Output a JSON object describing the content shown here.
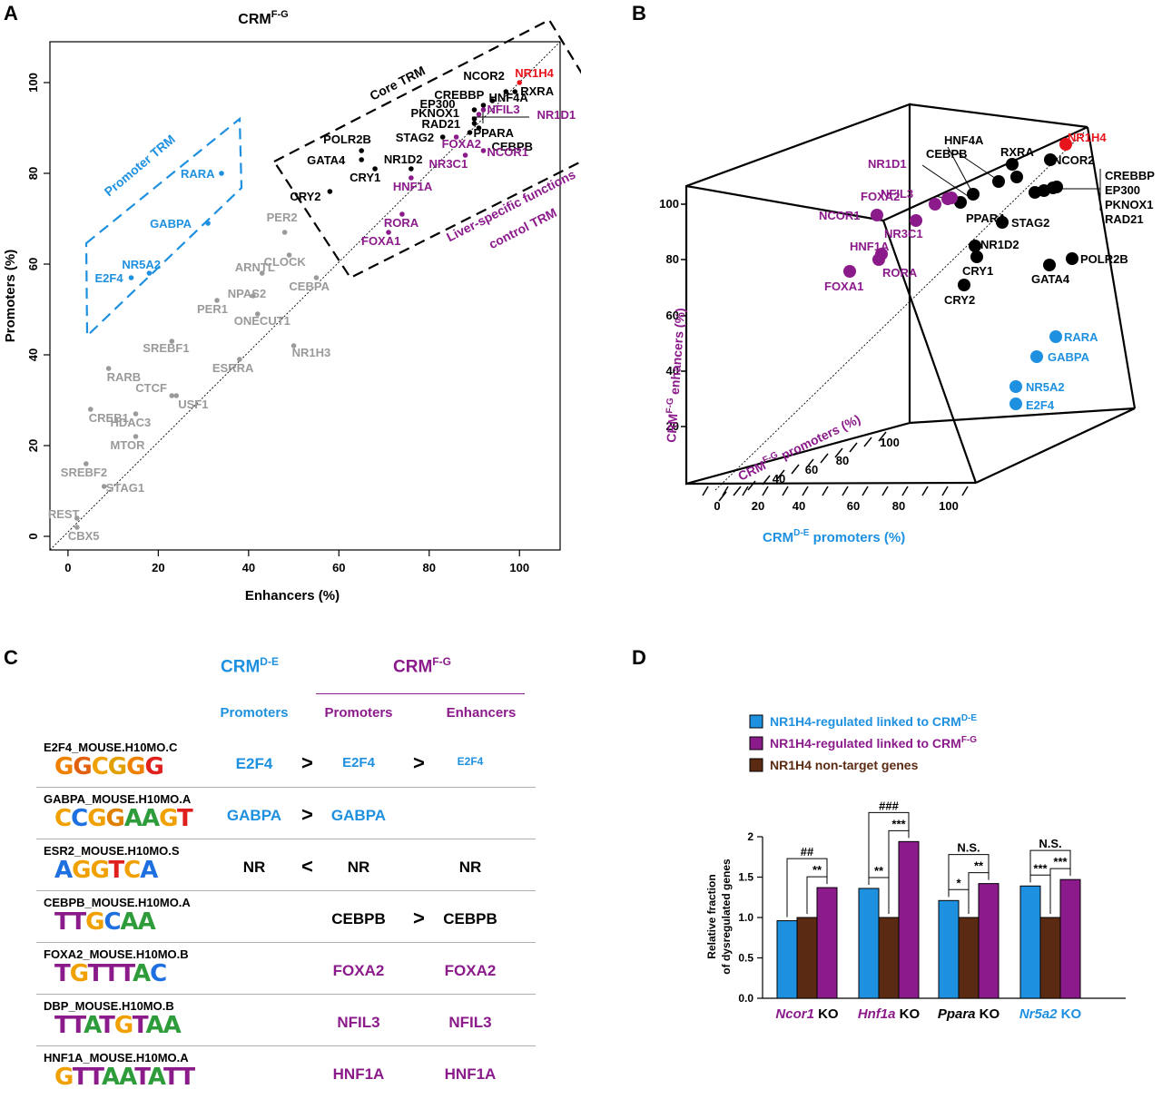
{
  "panels": {
    "A": "A",
    "B": "B",
    "C": "C",
    "D": "D"
  },
  "panelA": {
    "title_main": "CRM",
    "title_sup": "F-G",
    "xlabel": "Enhancers (%)",
    "ylabel": "Promoters (%)",
    "xticks": [
      "0",
      "20",
      "40",
      "60",
      "80",
      "100"
    ],
    "yticks": [
      "0",
      "20",
      "40",
      "60",
      "80",
      "100"
    ],
    "region_core": "Core TRM",
    "region_promoter": "Promoter TRM",
    "region_liver_1": "Liver-specific functions",
    "region_liver_2": "control TRM",
    "colors": {
      "black": "#000000",
      "gray": "#9a9a9a",
      "blue": "#1e90e0",
      "purple": "#8b1a8b",
      "red": "#e8141c"
    }
  },
  "chart_data": {
    "type": "scatter",
    "xlabel": "Enhancers (%)",
    "ylabel": "Promoters (%)",
    "xlim": [
      -4,
      109
    ],
    "ylim": [
      -3,
      109
    ],
    "series": [
      {
        "group": "gray",
        "points": [
          {
            "label": "PER2",
            "x": 48,
            "y": 67
          },
          {
            "label": "CLOCK",
            "x": 49,
            "y": 62
          },
          {
            "label": "CEBPA",
            "x": 55,
            "y": 57
          },
          {
            "label": "ARNTL",
            "x": 43,
            "y": 58
          },
          {
            "label": "NPAS2",
            "x": 41,
            "y": 53
          },
          {
            "label": "PER1",
            "x": 33,
            "y": 52
          },
          {
            "label": "ONECUT1",
            "x": 42,
            "y": 49
          },
          {
            "label": "SREBF1",
            "x": 23,
            "y": 43
          },
          {
            "label": "NR1H3",
            "x": 50,
            "y": 42
          },
          {
            "label": "ESRRA",
            "x": 38,
            "y": 39
          },
          {
            "label": "RARB",
            "x": 9,
            "y": 37
          },
          {
            "label": "CTCF",
            "x": 23,
            "y": 31
          },
          {
            "label": "USF1",
            "x": 24,
            "y": 31
          },
          {
            "label": "CREB1",
            "x": 5,
            "y": 28
          },
          {
            "label": "HDAC3",
            "x": 15,
            "y": 27
          },
          {
            "label": "MTOR",
            "x": 15,
            "y": 22
          },
          {
            "label": "SREBF2",
            "x": 4,
            "y": 16
          },
          {
            "label": "STAG1",
            "x": 8,
            "y": 11
          },
          {
            "label": "REST",
            "x": 2,
            "y": 4
          },
          {
            "label": "CBX5",
            "x": 2,
            "y": 2
          }
        ]
      },
      {
        "group": "blue",
        "points": [
          {
            "label": "RARA",
            "x": 34,
            "y": 80
          },
          {
            "label": "GABPA",
            "x": 31,
            "y": 69
          },
          {
            "label": "NR5A2",
            "x": 18,
            "y": 58
          },
          {
            "label": "E2F4",
            "x": 14,
            "y": 57
          }
        ]
      },
      {
        "group": "black",
        "points": [
          {
            "label": "NCOR2",
            "x": 97,
            "y": 98
          },
          {
            "label": "RXRA",
            "x": 99,
            "y": 98
          },
          {
            "label": "CREBBP",
            "x": 94,
            "y": 96
          },
          {
            "label": "HNF4A",
            "x": 92,
            "y": 95
          },
          {
            "label": "EP300",
            "x": 90,
            "y": 94
          },
          {
            "label": "PKNOX1",
            "x": 90,
            "y": 92
          },
          {
            "label": "RAD21",
            "x": 90,
            "y": 91
          },
          {
            "label": "CEBPB",
            "x": 91,
            "y": 90
          },
          {
            "label": "STAG2",
            "x": 83,
            "y": 88
          },
          {
            "label": "PPARA",
            "x": 89,
            "y": 89
          },
          {
            "label": "POLR2B",
            "x": 65,
            "y": 85
          },
          {
            "label": "GATA4",
            "x": 65,
            "y": 83
          },
          {
            "label": "CRY1",
            "x": 68,
            "y": 81
          },
          {
            "label": "NR1D2",
            "x": 76,
            "y": 81
          },
          {
            "label": "CRY2",
            "x": 58,
            "y": 76
          }
        ]
      },
      {
        "group": "purple",
        "points": [
          {
            "label": "NFIL3",
            "x": 92,
            "y": 94
          },
          {
            "label": "NR1D1",
            "x": 91,
            "y": 93
          },
          {
            "label": "FOXA2",
            "x": 86,
            "y": 88
          },
          {
            "label": "NCOR1",
            "x": 92,
            "y": 85
          },
          {
            "label": "NR3C1",
            "x": 88,
            "y": 84
          },
          {
            "label": "HNF1A",
            "x": 76,
            "y": 79
          },
          {
            "label": "RORA",
            "x": 74,
            "y": 71
          },
          {
            "label": "FOXA1",
            "x": 71,
            "y": 67
          }
        ]
      },
      {
        "group": "red",
        "points": [
          {
            "label": "NR1H4",
            "x": 100,
            "y": 100
          }
        ]
      }
    ]
  },
  "panelB": {
    "zlabel_main": "CRM",
    "zlabel_sup": "F-G",
    "zlabel_rest": " enhancers (%)",
    "ylabel_main": "CRM",
    "ylabel_sup": "F-G",
    "ylabel_rest": " promoters (%)",
    "xlabel_main": "CRM",
    "xlabel_sup": "D-E",
    "xlabel_rest": " promoters (%)",
    "zticks": [
      "20",
      "40",
      "60",
      "80",
      "100"
    ],
    "yticks": [
      "40",
      "60",
      "80",
      "100"
    ],
    "xticks": [
      "0",
      "20",
      "40",
      "60",
      "80",
      "100"
    ],
    "bracket_labels": [
      "CREBBP",
      "EP300",
      "PKNOX1",
      "RAD21"
    ],
    "points": [
      {
        "label": "NR1H4",
        "group": "red"
      },
      {
        "label": "NCOR2",
        "group": "black"
      },
      {
        "label": "RXRA",
        "group": "black"
      },
      {
        "label": "HNF4A",
        "group": "black"
      },
      {
        "label": "CEBPB",
        "group": "black"
      },
      {
        "label": "PPARA",
        "group": "black"
      },
      {
        "label": "STAG2",
        "group": "black"
      },
      {
        "label": "NR1D2",
        "group": "black"
      },
      {
        "label": "CRY1",
        "group": "black"
      },
      {
        "label": "CRY2",
        "group": "black"
      },
      {
        "label": "GATA4",
        "group": "black"
      },
      {
        "label": "POLR2B",
        "group": "black"
      },
      {
        "label": "NR1D1",
        "group": "purple"
      },
      {
        "label": "FOXA2",
        "group": "purple"
      },
      {
        "label": "NFIL3",
        "group": "purple"
      },
      {
        "label": "NCOR1",
        "group": "purple"
      },
      {
        "label": "NR3C1",
        "group": "purple"
      },
      {
        "label": "HNF1A",
        "group": "purple"
      },
      {
        "label": "RORA",
        "group": "purple"
      },
      {
        "label": "FOXA1",
        "group": "purple"
      },
      {
        "label": "RARA",
        "group": "blue"
      },
      {
        "label": "GABPA",
        "group": "blue"
      },
      {
        "label": "NR5A2",
        "group": "blue"
      },
      {
        "label": "E2F4",
        "group": "blue"
      }
    ]
  },
  "panelC": {
    "head_de_main": "CRM",
    "head_de_sup": "D-E",
    "head_fg_main": "CRM",
    "head_fg_sup": "F-G",
    "col_promoters_de": "Promoters",
    "col_promoters_fg": "Promoters",
    "col_enhancers_fg": "Enhancers",
    "rows": [
      {
        "motif": "E2F4_MOUSE.H10MO.C",
        "logo": "GGCGGG",
        "de": "E2F4",
        "op1": ">",
        "fgp": "E2F4",
        "op2": ">",
        "fge": "E2F4"
      },
      {
        "motif": "GABPA_MOUSE.H10MO.A",
        "logo": "CCGGAAGT",
        "de": "GABPA",
        "op1": ">",
        "fgp": "GABPA",
        "op2": "",
        "fge": ""
      },
      {
        "motif": "ESR2_MOUSE.H10MO.S",
        "logo": "AGGTCA",
        "de": "NR",
        "op1": "<",
        "fgp": "NR",
        "op2": "",
        "fge": "NR"
      },
      {
        "motif": "CEBPB_MOUSE.H10MO.A",
        "logo": "TTGCAA",
        "de": "",
        "op1": "",
        "fgp": "CEBPB",
        "op2": ">",
        "fge": "CEBPB"
      },
      {
        "motif": "FOXA2_MOUSE.H10MO.B",
        "logo": "TGTTTAC",
        "de": "",
        "op1": "",
        "fgp": "FOXA2",
        "op2": "",
        "fge": "FOXA2"
      },
      {
        "motif": "DBP_MOUSE.H10MO.B",
        "logo": "TTATGTAA",
        "de": "",
        "op1": "",
        "fgp": "NFIL3",
        "op2": "",
        "fge": "NFIL3"
      },
      {
        "motif": "HNF1A_MOUSE.H10MO.A",
        "logo": "GTTAATATT",
        "de": "",
        "op1": "",
        "fgp": "HNF1A",
        "op2": "",
        "fge": "HNF1A"
      }
    ]
  },
  "panelD": {
    "legend": [
      {
        "label": "NR1H4-regulated linked to CRM",
        "sup": "D-E",
        "color": "#1e90e0"
      },
      {
        "label": "NR1H4-regulated linked to CRM",
        "sup": "F-G",
        "color": "#8b1a8b"
      },
      {
        "label": "NR1H4 non-target genes",
        "sup": "",
        "color": "#5a2a12"
      }
    ],
    "ylabel_1": "Relative fraction",
    "ylabel_2": "of dysregulated genes",
    "yticks": [
      "0.0",
      "0.5",
      "1.0",
      "1.5",
      "2"
    ],
    "groups": [
      {
        "gene": "Ncor1",
        "suffix": " KO",
        "gene_color": "#8b1a8b",
        "values": [
          0.96,
          1.0,
          1.37
        ],
        "sig_top": "##",
        "sig_left": "",
        "sig_right": "**"
      },
      {
        "gene": "Hnf1a",
        "suffix": " KO",
        "gene_color": "#8b1a8b",
        "values": [
          1.36,
          1.0,
          1.94
        ],
        "sig_top": "###",
        "sig_left": "**",
        "sig_right": "***"
      },
      {
        "gene": "Ppara",
        "suffix": " KO",
        "gene_color": "#000000",
        "values": [
          1.21,
          1.0,
          1.42
        ],
        "sig_top": "N.S.",
        "sig_left": "*",
        "sig_right": "**"
      },
      {
        "gene": "Nr5a2",
        "suffix": " KO",
        "gene_color": "#1e90e0",
        "values": [
          1.39,
          1.0,
          1.47
        ],
        "sig_top": "N.S.",
        "sig_left": "***",
        "sig_right": "***"
      }
    ]
  }
}
